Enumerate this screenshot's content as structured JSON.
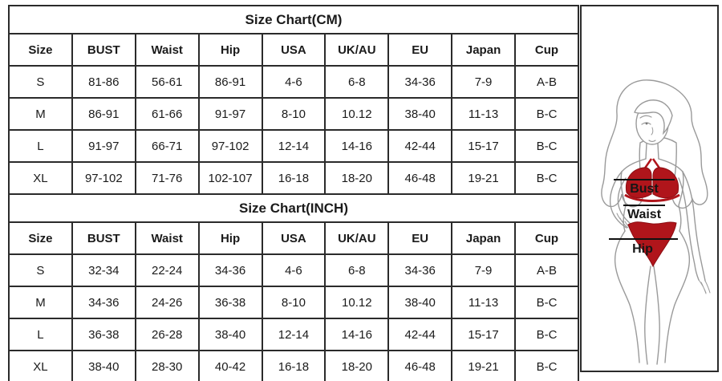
{
  "page_title": "Size Chart",
  "chart_data": [
    {
      "type": "table",
      "title": "Size Chart(CM)",
      "columns": [
        "Size",
        "BUST",
        "Waist",
        "Hip",
        "USA",
        "UK/AU",
        "EU",
        "Japan",
        "Cup"
      ],
      "rows": [
        [
          "S",
          "81-86",
          "56-61",
          "86-91",
          "4-6",
          "6-8",
          "34-36",
          "7-9",
          "A-B"
        ],
        [
          "M",
          "86-91",
          "61-66",
          "91-97",
          "8-10",
          "10.12",
          "38-40",
          "11-13",
          "B-C"
        ],
        [
          "L",
          "91-97",
          "66-71",
          "97-102",
          "12-14",
          "14-16",
          "42-44",
          "15-17",
          "B-C"
        ],
        [
          "XL",
          "97-102",
          "71-76",
          "102-107",
          "16-18",
          "18-20",
          "46-48",
          "19-21",
          "B-C"
        ]
      ]
    },
    {
      "type": "table",
      "title": "Size Chart(INCH)",
      "columns": [
        "Size",
        "BUST",
        "Waist",
        "Hip",
        "USA",
        "UK/AU",
        "EU",
        "Japan",
        "Cup"
      ],
      "rows": [
        [
          "S",
          "32-34",
          "22-24",
          "34-36",
          "4-6",
          "6-8",
          "34-36",
          "7-9",
          "A-B"
        ],
        [
          "M",
          "34-36",
          "24-26",
          "36-38",
          "8-10",
          "10.12",
          "38-40",
          "11-13",
          "B-C"
        ],
        [
          "L",
          "36-38",
          "26-28",
          "38-40",
          "12-14",
          "14-16",
          "42-44",
          "15-17",
          "B-C"
        ],
        [
          "XL",
          "38-40",
          "28-30",
          "40-42",
          "16-18",
          "18-20",
          "46-48",
          "19-21",
          "B-C"
        ]
      ]
    }
  ],
  "figure": {
    "labels": {
      "bust": "Bust",
      "waist": "Waist",
      "hip": "Hip"
    },
    "colors": {
      "bikini_red": "#b0151b",
      "bikini_red_dark": "#8c0e13",
      "outline_gray": "#9a9a9a",
      "line_black": "#111111",
      "label_black": "#161616"
    }
  }
}
